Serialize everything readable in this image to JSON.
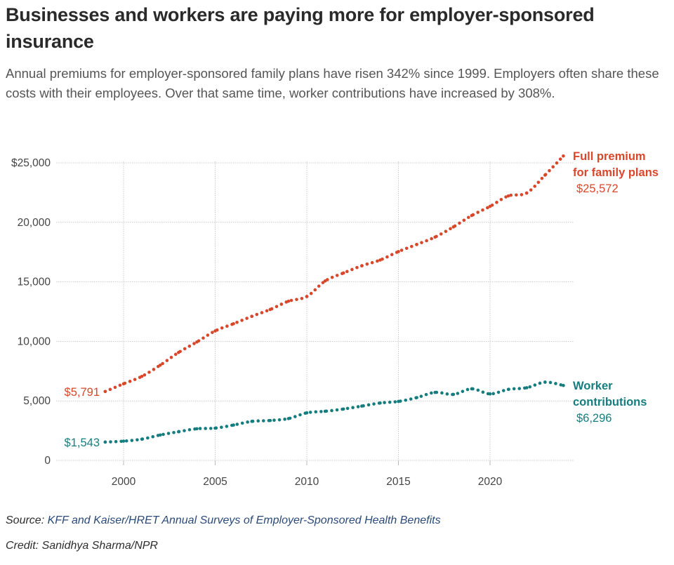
{
  "header": {
    "title": "Businesses and workers are paying more for employer-sponsored insurance",
    "subtitle": "Annual premiums for employer-sponsored family plans have risen 342% since 1999. Employers often share these costs with their employees. Over that same time, worker contributions have increased by 308%."
  },
  "footer": {
    "source_prefix": "Source: ",
    "source_link": "KFF and Kaiser/HRET Annual Surveys of Employer-Sponsored Health Benefits",
    "credit": "Credit: Sanidhya Sharma/NPR"
  },
  "colors": {
    "premium": "#d9472b",
    "worker": "#167d7f",
    "grid": "#cccccc"
  },
  "chart_data": {
    "type": "line",
    "title": "Businesses and workers are paying more for employer-sponsored insurance",
    "xlabel": "",
    "ylabel": "",
    "xlim": [
      1996.2,
      2024.6
    ],
    "ylim": [
      0,
      25000
    ],
    "grid": true,
    "x_ticks": [
      2000,
      2005,
      2010,
      2015,
      2020
    ],
    "x_tick_labels": [
      "2000",
      "2005",
      "2010",
      "2015",
      "2020"
    ],
    "y_ticks": [
      0,
      5000,
      10000,
      15000,
      20000,
      25000
    ],
    "y_tick_labels": [
      "0",
      "5,000",
      "10,000",
      "15,000",
      "20,000",
      "$25,000"
    ],
    "x": [
      1999,
      2000,
      2001,
      2002,
      2003,
      2004,
      2005,
      2006,
      2007,
      2008,
      2009,
      2010,
      2011,
      2012,
      2013,
      2014,
      2015,
      2016,
      2017,
      2018,
      2019,
      2020,
      2021,
      2022,
      2023,
      2024
    ],
    "series": [
      {
        "name": "Full premium for family plans",
        "label_lines": [
          "Full premium",
          "for family plans"
        ],
        "start_label": "$5,791",
        "end_label": "$25,572",
        "values": [
          5791,
          6438,
          7061,
          8003,
          9068,
          9950,
          10880,
          11480,
          12106,
          12680,
          13375,
          13770,
          15073,
          15745,
          16351,
          16834,
          17545,
          18142,
          18764,
          19616,
          20576,
          21342,
          22221,
          22463,
          23968,
          25572
        ]
      },
      {
        "name": "Worker contributions",
        "label_lines": [
          "Worker",
          "contributions"
        ],
        "start_label": "$1,543",
        "end_label": "$6,296",
        "values": [
          1543,
          1619,
          1787,
          2137,
          2412,
          2661,
          2713,
          2973,
          3281,
          3354,
          3515,
          3997,
          4129,
          4316,
          4565,
          4823,
          4955,
          5277,
          5714,
          5547,
          6015,
          5588,
          5969,
          6106,
          6575,
          6296
        ]
      }
    ],
    "legend": "direct-labels-right"
  }
}
